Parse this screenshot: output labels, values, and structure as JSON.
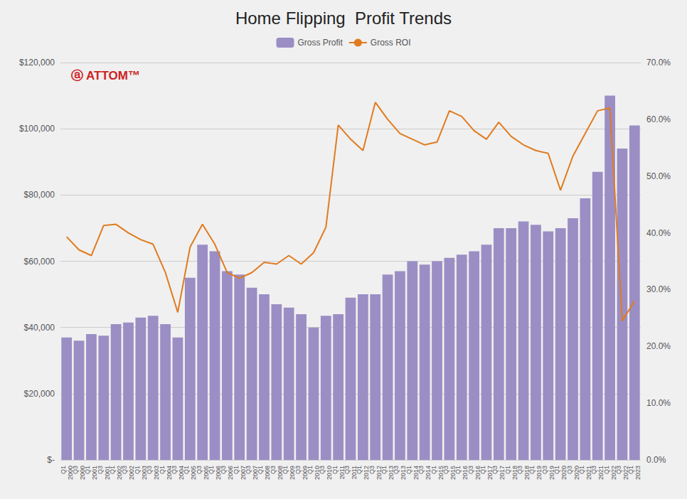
{
  "chart_data": {
    "type": "bar",
    "title": "Home Flipping  Profit Trends",
    "categories": [
      "Q1\n2000",
      "Q3\n2000",
      "Q1\n2001",
      "Q3\n2001",
      "Q1\n2002",
      "Q3\n2002",
      "Q1\n2003",
      "Q3\n2003",
      "Q1\n2004",
      "Q3\n2004",
      "Q1\n2005",
      "Q3\n2005",
      "Q1\n2006",
      "Q3\n2006",
      "Q1\n2007",
      "Q3\n2007",
      "Q1\n2008",
      "Q3\n2008",
      "Q1\n2009",
      "Q3\n2009",
      "Q1\n2010",
      "Q3\n2010",
      "Q1\n2011",
      "Q3\n2011",
      "Q1\n2012",
      "Q3\n2012",
      "Q1\n2013",
      "Q3\n2013",
      "Q1\n2014",
      "Q3\n2014",
      "Q1\n2015",
      "Q3\n2015",
      "Q1\n2016",
      "Q3\n2016",
      "Q1\n2017",
      "Q3\n2017",
      "Q1\n2018",
      "Q3\n2018",
      "Q1\n2019",
      "Q3\n2019",
      "Q1\n2020",
      "Q3\n2020",
      "Q1\n2021",
      "Q3\n2021",
      "Q1\n2022",
      "Q3\n2022",
      "Q1\n2023"
    ],
    "series": [
      {
        "name": "Gross Profit",
        "type": "bar",
        "color": "#9B8EC4",
        "values": [
          37000,
          36000,
          38000,
          37500,
          41000,
          41500,
          43000,
          43500,
          41000,
          37000,
          55000,
          65000,
          63000,
          57000,
          56000,
          52000,
          50000,
          47000,
          46000,
          44000,
          40000,
          43500,
          44000,
          49000,
          50000,
          50000,
          56000,
          57000,
          60000,
          59000,
          60000,
          61000,
          62000,
          63000,
          65000,
          70000,
          70000,
          72000,
          71000,
          69000,
          70000,
          73000,
          79000,
          87000,
          110000,
          94000,
          101000
        ]
      },
      {
        "name": "Gross ROI",
        "type": "line",
        "color": "#E07B20",
        "axis": "y2",
        "values": [
          0.393,
          0.37,
          0.36,
          0.413,
          0.415,
          0.4,
          0.388,
          0.38,
          0.33,
          0.26,
          0.375,
          0.415,
          0.38,
          0.33,
          0.32,
          0.33,
          0.348,
          0.345,
          0.36,
          0.345,
          0.365,
          0.41,
          0.59,
          0.565,
          0.545,
          0.63,
          0.6,
          0.575,
          0.565,
          0.555,
          0.56,
          0.615,
          0.605,
          0.58,
          0.565,
          0.595,
          0.57,
          0.555,
          0.545,
          0.54,
          0.475,
          0.535,
          0.575,
          0.615,
          0.62,
          0.245,
          0.28
        ]
      }
    ],
    "ylim": [
      0,
      120000
    ],
    "yticks": [
      {
        "value": 0,
        "label": "$-"
      },
      {
        "value": 20000,
        "label": "$20,000"
      },
      {
        "value": 40000,
        "label": "$40,000"
      },
      {
        "value": 60000,
        "label": "$60,000"
      },
      {
        "value": 80000,
        "label": "$80,000"
      },
      {
        "value": 100000,
        "label": "$100,000"
      },
      {
        "value": 120000,
        "label": "$120,000"
      }
    ],
    "y2lim": [
      0,
      0.7
    ],
    "y2ticks": [
      {
        "value": 0,
        "label": "0.0%"
      },
      {
        "value": 0.1,
        "label": "10.0%"
      },
      {
        "value": 0.2,
        "label": "20.0%"
      },
      {
        "value": 0.3,
        "label": "30.0%"
      },
      {
        "value": 0.4,
        "label": "40.0%"
      },
      {
        "value": 0.5,
        "label": "50.0%"
      },
      {
        "value": 0.6,
        "label": "60.0%"
      },
      {
        "value": 0.7,
        "label": "70.0%"
      }
    ],
    "grid": true,
    "legend": "top",
    "annotations": [
      {
        "text": "ⓐ ATTOM™",
        "color": "#CC2222"
      }
    ]
  }
}
